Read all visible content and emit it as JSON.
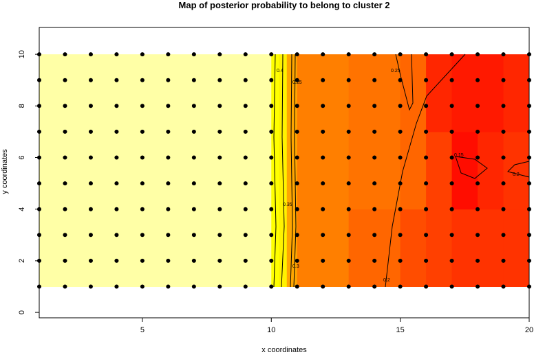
{
  "chart_data": {
    "type": "heatmap",
    "title": "Map of posterior probability to belong to cluster  2",
    "x_label": "x coordinates",
    "y_label": "y coordinates",
    "xlim": [
      1,
      20
    ],
    "ylim": [
      -0.21,
      11.04
    ],
    "xticks": [
      5,
      10,
      15,
      20
    ],
    "yticks": [
      0,
      2,
      4,
      6,
      8,
      10
    ],
    "heatmap": {
      "x_edges": [
        1,
        10,
        10.3,
        10.6,
        11,
        13,
        15,
        16,
        17,
        18,
        19,
        20
      ],
      "y_edges": [
        1,
        4,
        7,
        10
      ],
      "values": [
        [
          0.45,
          0.38,
          0.33,
          0.27,
          0.24,
          0.22,
          0.2,
          0.19,
          0.18,
          0.18,
          0.18
        ],
        [
          0.45,
          0.38,
          0.33,
          0.27,
          0.24,
          0.23,
          0.22,
          0.19,
          0.15,
          0.17,
          0.18
        ],
        [
          0.45,
          0.38,
          0.33,
          0.27,
          0.24,
          0.23,
          0.22,
          0.17,
          0.16,
          0.16,
          0.17
        ]
      ]
    },
    "contours": [
      {
        "level": 0.4
      },
      {
        "level": 0.35
      },
      {
        "level": 0.3
      },
      {
        "level": 0.25
      },
      {
        "level": 0.25
      },
      {
        "level": 0.2
      },
      {
        "level": 0.2
      },
      {
        "level": 0.15
      }
    ],
    "points": {
      "x": [
        1,
        2,
        3,
        4,
        5,
        6,
        7,
        8,
        9,
        10,
        11,
        12,
        13,
        14,
        15,
        16,
        17,
        18,
        19,
        20
      ],
      "y": [
        1,
        2,
        3,
        4,
        5,
        6,
        7,
        8,
        9,
        10
      ]
    }
  }
}
